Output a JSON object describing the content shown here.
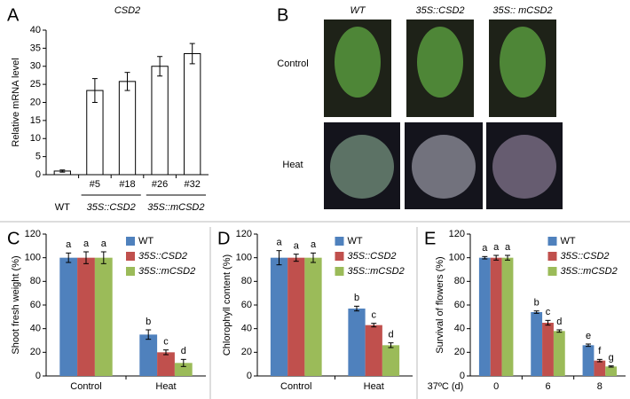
{
  "photo_panel": {
    "panel": "B",
    "columns": [
      "WT",
      "35S::CSD2",
      "35S:: mCSD2"
    ],
    "rows": [
      "Control",
      "Heat"
    ]
  },
  "chart_data": [
    {
      "type": "bar",
      "panel": "A",
      "title": "CSD2",
      "y_label": "Relative mRNA level",
      "categories": [
        "WT",
        "#5",
        "#18",
        "#26",
        "#32"
      ],
      "groups": [
        {
          "label": "35S::CSD2",
          "members": [
            "#5",
            "#18"
          ]
        },
        {
          "label": "35S::mCSD2",
          "members": [
            "#26",
            "#32"
          ]
        }
      ],
      "series": [
        {
          "color": "#ffffff",
          "values": [
            1,
            23.3,
            25.8,
            30,
            33.5
          ],
          "errors": [
            0.3,
            3.3,
            2.5,
            2.7,
            2.8
          ]
        }
      ],
      "ylim": [
        0,
        40
      ],
      "yticks": [
        0,
        5,
        10,
        15,
        20,
        25,
        30,
        35,
        40
      ]
    },
    {
      "type": "bar",
      "panel": "C",
      "y_label": "Shoot fresh weight (%)",
      "legend": "upper right",
      "categories": [
        "Control",
        "Heat"
      ],
      "series": [
        {
          "name": "WT",
          "color": "#4f81bd",
          "values": [
            100,
            35
          ],
          "errors": [
            4,
            4
          ],
          "letters": [
            "a",
            "b"
          ]
        },
        {
          "name": "35S::CSD2",
          "color": "#c0504d",
          "values": [
            100,
            20
          ],
          "errors": [
            5,
            2
          ],
          "letters": [
            "a",
            "c"
          ]
        },
        {
          "name": "35S::mCSD2",
          "color": "#9bbb59",
          "values": [
            100,
            11
          ],
          "errors": [
            5,
            3
          ],
          "letters": [
            "a",
            "d"
          ]
        }
      ],
      "ylim": [
        0,
        120
      ],
      "yticks": [
        0,
        20,
        40,
        60,
        80,
        100,
        120
      ]
    },
    {
      "type": "bar",
      "panel": "D",
      "y_label": "Chlorophyll content (%)",
      "legend": "upper right",
      "categories": [
        "Control",
        "Heat"
      ],
      "series": [
        {
          "name": "WT",
          "color": "#4f81bd",
          "values": [
            100,
            57
          ],
          "errors": [
            6,
            2
          ],
          "letters": [
            "a",
            "b"
          ]
        },
        {
          "name": "35S::CSD2",
          "color": "#c0504d",
          "values": [
            100,
            43
          ],
          "errors": [
            3,
            1.5
          ],
          "letters": [
            "a",
            "c"
          ]
        },
        {
          "name": "35S::mCSD2",
          "color": "#9bbb59",
          "values": [
            100,
            26
          ],
          "errors": [
            4,
            2
          ],
          "letters": [
            "a",
            "d"
          ]
        }
      ],
      "ylim": [
        0,
        120
      ],
      "yticks": [
        0,
        20,
        40,
        60,
        80,
        100,
        120
      ]
    },
    {
      "type": "bar",
      "panel": "E",
      "y_label": "Survival of flowers (%)",
      "x_label": "37ºC (d)",
      "legend": "upper right",
      "categories": [
        "0",
        "6",
        "8"
      ],
      "series": [
        {
          "name": "WT",
          "color": "#4f81bd",
          "values": [
            100,
            54,
            26
          ],
          "errors": [
            1,
            1,
            1
          ],
          "letters": [
            "a",
            "b",
            "e"
          ]
        },
        {
          "name": "35S::CSD2",
          "color": "#c0504d",
          "values": [
            100,
            45,
            13
          ],
          "errors": [
            2,
            2,
            1
          ],
          "letters": [
            "a",
            "c",
            "f"
          ]
        },
        {
          "name": "35S::mCSD2",
          "color": "#9bbb59",
          "values": [
            100,
            38,
            8
          ],
          "errors": [
            2,
            1,
            0.5
          ],
          "letters": [
            "a",
            "d",
            "g"
          ]
        }
      ],
      "ylim": [
        0,
        120
      ],
      "yticks": [
        0,
        20,
        40,
        60,
        80,
        100,
        120
      ]
    }
  ]
}
